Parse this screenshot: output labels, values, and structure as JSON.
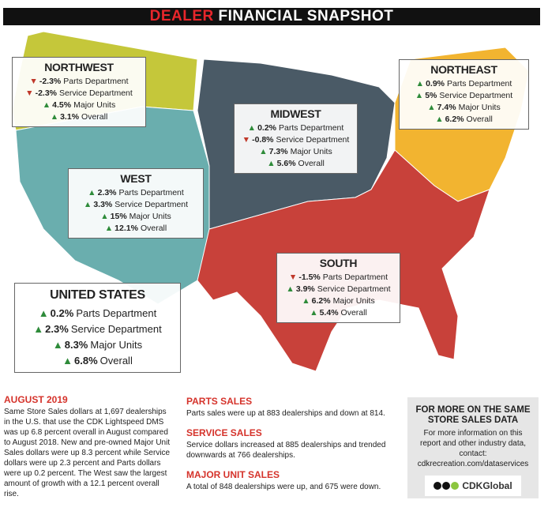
{
  "header": {
    "title_accent": "DEALER",
    "title": "FINANCIAL SNAPSHOT"
  },
  "regions": [
    {
      "name": "NORTHWEST",
      "rows": [
        {
          "value": "-2.3%",
          "label": "Parts Department"
        },
        {
          "value": "-2.3%",
          "label": "Service Department"
        },
        {
          "value": "4.5%",
          "label": "Major Units"
        },
        {
          "value": "3.1%",
          "label": "Overall"
        }
      ]
    },
    {
      "name": "MIDWEST",
      "rows": [
        {
          "value": "0.2%",
          "label": "Parts Department"
        },
        {
          "value": "-0.8%",
          "label": "Service Department"
        },
        {
          "value": "7.3%",
          "label": "Major Units"
        },
        {
          "value": "5.6%",
          "label": "Overall"
        }
      ]
    },
    {
      "name": "NORTHEAST",
      "rows": [
        {
          "value": "0.9%",
          "label": "Parts Department"
        },
        {
          "value": "5%",
          "label": "Service Department"
        },
        {
          "value": "7.4%",
          "label": "Major Units"
        },
        {
          "value": "6.2%",
          "label": "Overall"
        }
      ]
    },
    {
      "name": "WEST",
      "rows": [
        {
          "value": "2.3%",
          "label": "Parts Department"
        },
        {
          "value": "3.3%",
          "label": "Service Department"
        },
        {
          "value": "15%",
          "label": "Major Units"
        },
        {
          "value": "12.1%",
          "label": "Overall"
        }
      ]
    },
    {
      "name": "SOUTH",
      "rows": [
        {
          "value": "-1.5%",
          "label": "Parts Department"
        },
        {
          "value": "3.9%",
          "label": "Service Department"
        },
        {
          "value": "6.2%",
          "label": "Major Units"
        },
        {
          "value": "5.4%",
          "label": "Overall"
        }
      ]
    },
    {
      "name": "UNITED STATES",
      "rows": [
        {
          "value": "0.2%",
          "label": "Parts Department"
        },
        {
          "value": "2.3%",
          "label": "Service Department"
        },
        {
          "value": "8.3%",
          "label": "Major Units"
        },
        {
          "value": "6.8%",
          "label": "Overall"
        }
      ]
    }
  ],
  "summary": {
    "heading": "AUGUST 2019",
    "text": "Same Store Sales dollars at 1,697 dealerships in the U.S. that use the CDK Lightspeed DMS was up 6.8 percent overall in August compared to August 2018. New and pre-owned Major Unit Sales dollars were up 8.3 percent while Service dollars were up 2.3 percent and Parts dollars were up 0.2 percent. The West saw the largest amount of growth with a 12.1 percent overall rise."
  },
  "sections": [
    {
      "heading": "PARTS SALES",
      "text": "Parts sales were up at 883 dealerships and down at 814."
    },
    {
      "heading": "SERVICE SALES",
      "text": "Service dollars increased at 885 dealerships and trended downwards at 766 dealerships."
    },
    {
      "heading": "MAJOR UNIT SALES",
      "text": "A total of 848 dealerships were up, and 675 were down."
    }
  ],
  "sidebar": {
    "heading": "FOR MORE ON THE SAME STORE SALES DATA",
    "text": "For more information on this report and other industry data, contact: cdkrecreation.com/dataservices",
    "logo": "CDKGlobal"
  }
}
